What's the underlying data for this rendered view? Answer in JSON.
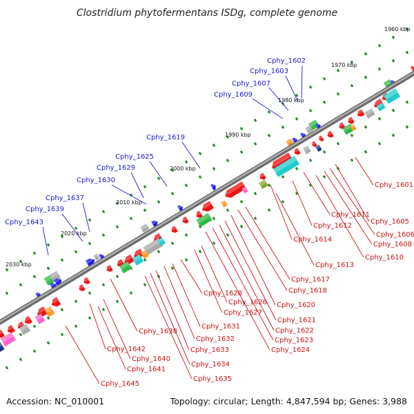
{
  "title": "Clostridium phytofermentans ISDg, complete genome",
  "footer": {
    "accession": "Accession: NC_010001",
    "info": "Topology: circular; Length: 4,847,594 bp; Genes: 3,988"
  },
  "colors": {
    "axis": "#8a8a8a",
    "tick": "#2a8a2a",
    "label_top": "#1a1acc",
    "label_bottom": "#cc1111",
    "gene_red": "#ee1111",
    "gene_blue": "#1a1aee",
    "gene_cyan": "#22cccc",
    "gene_green": "#33bb44",
    "gene_gray": "#aaaaaa",
    "gene_orange": "#ff9922"
  },
  "scale_labels": [
    "1960 kbp",
    "1970 kbp",
    "1980 kbp",
    "1990 kbp",
    "2000 kbp",
    "2010 kbp",
    "2020 kbp",
    "2030 kbp"
  ],
  "labels_top": [
    "Cphy_1602",
    "Cphy_1603",
    "Cphy_1607",
    "Cphy_1609",
    "Cphy_1619",
    "Cphy_1625",
    "Cphy_1629",
    "Cphy_1630",
    "Cphy_1637",
    "Cphy_1639",
    "Cphy_1643"
  ],
  "labels_bottom": [
    "Cphy_1601",
    "Cphy_1605",
    "Cphy_1606",
    "Cphy_1608",
    "Cphy_1610",
    "Cphy_1611",
    "Cphy_1612",
    "Cphy_1613",
    "Cphy_1614",
    "Cphy_1617",
    "Cphy_1618",
    "Cphy_1620",
    "Cphy_1621",
    "Cphy_1622",
    "Cphy_1623",
    "Cphy_1624",
    "Cphy_1626",
    "Cphy_1627",
    "Cphy_1628",
    "Cphy_1631",
    "Cphy_1632",
    "Cphy_1633",
    "Cphy_1634",
    "Cphy_1635",
    "Cphy_1638",
    "Cphy_1640",
    "Cphy_1641",
    "Cphy_1642",
    "Cphy_1645"
  ]
}
